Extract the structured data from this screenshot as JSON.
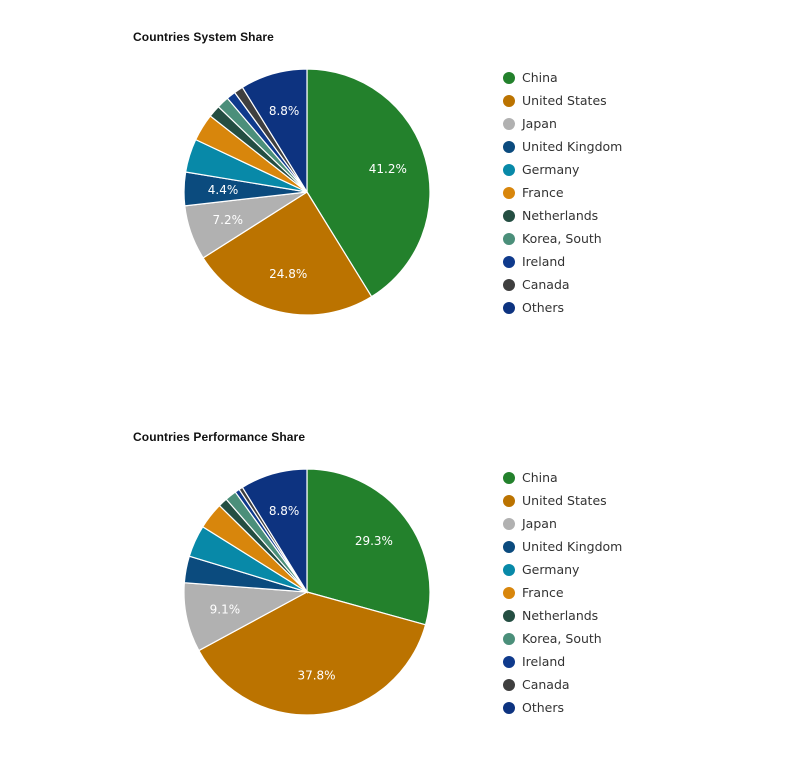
{
  "colors": {
    "China": "#23812c",
    "United States": "#bb7300",
    "Japan": "#b1b1b1",
    "United Kingdom": "#0b4b7e",
    "Germany": "#0889a8",
    "France": "#d8860c",
    "Netherlands": "#244e42",
    "Korea, South": "#4b8f7a",
    "Ireland": "#0f3a8c",
    "Canada": "#3f3f3f",
    "Others": "#0d3380"
  },
  "chart_data": [
    {
      "type": "pie",
      "title": "Countries System Share",
      "categories": [
        "China",
        "United States",
        "Japan",
        "United Kingdom",
        "Germany",
        "France",
        "Netherlands",
        "Korea, South",
        "Ireland",
        "Canada",
        "Others"
      ],
      "values": [
        41.2,
        24.8,
        7.2,
        4.4,
        4.4,
        3.6,
        1.6,
        1.6,
        1.2,
        1.2,
        8.8
      ],
      "data_labels": [
        "41.2%",
        "24.8%",
        "7.2%",
        "4.4%",
        "",
        "",
        "",
        "",
        "",
        "",
        "8.8%"
      ],
      "legend": "right"
    },
    {
      "type": "pie",
      "title": "Countries Performance Share",
      "categories": [
        "China",
        "United States",
        "Japan",
        "United Kingdom",
        "Germany",
        "France",
        "Netherlands",
        "Korea, South",
        "Ireland",
        "Canada",
        "Others"
      ],
      "values": [
        29.3,
        37.8,
        9.1,
        3.5,
        4.2,
        3.5,
        1.2,
        1.5,
        0.6,
        0.5,
        8.8
      ],
      "data_labels": [
        "29.3%",
        "37.8%",
        "9.1%",
        "",
        "",
        "",
        "",
        "",
        "",
        "",
        "8.8%"
      ],
      "legend": "right"
    }
  ]
}
